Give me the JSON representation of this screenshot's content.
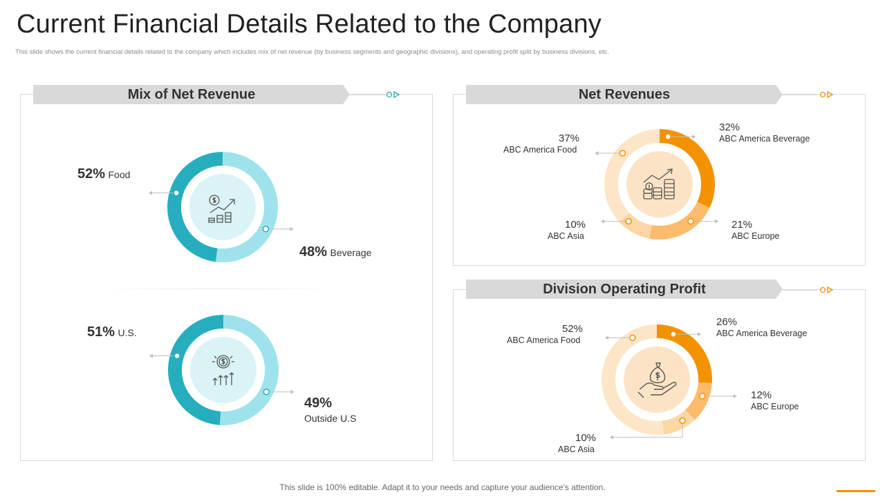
{
  "header": {
    "title": "Current Financial Details Related to the Company",
    "subtitle": "This slide shows the current financial details related to the company which includes mix of net revenue (by business segments and geographic divisions), and operating profit split by business divisions, etc."
  },
  "panels": {
    "mix": {
      "title": "Mix of Net Revenue"
    },
    "net": {
      "title": "Net Revenues"
    },
    "profit": {
      "title": "Division Operating Profit"
    }
  },
  "footer": {
    "text": "This slide is 100% editable. Adapt it to your needs and capture your audience's attention."
  },
  "colors": {
    "teal_dark": "#26aebf",
    "teal_light": "#9ee3ec",
    "teal_center": "#daf3f6",
    "orange_dark": "#f39200",
    "orange_mid": "#fbbc6b",
    "orange_light": "#fcd7a6",
    "orange_pale": "#fde6c8",
    "orange_center": "#fde3c5",
    "grey": "#d9d9d9"
  },
  "chart_data": [
    {
      "type": "pie",
      "series": [
        {
          "name": "Food",
          "label": "52%",
          "value": 52,
          "color": "#9ee3ec"
        },
        {
          "name": "Beverage",
          "label": "48%",
          "value": 48,
          "color": "#26aebf"
        }
      ]
    },
    {
      "type": "pie",
      "series": [
        {
          "name": "U.S.",
          "label": "51%",
          "value": 51,
          "color": "#9ee3ec"
        },
        {
          "name": "Outside U.S",
          "label": "49%",
          "value": 49,
          "color": "#26aebf"
        }
      ]
    },
    {
      "type": "pie",
      "series": [
        {
          "name": "ABC America Beverage",
          "label": "32%",
          "value": 32,
          "color": "#f39200"
        },
        {
          "name": "ABC Europe",
          "label": "21%",
          "value": 21,
          "color": "#fbbc6b"
        },
        {
          "name": "ABC Asia",
          "label": "10%",
          "value": 10,
          "color": "#fcd7a6"
        },
        {
          "name": "ABC America Food",
          "label": "37%",
          "value": 37,
          "color": "#fde6c8"
        }
      ]
    },
    {
      "type": "pie",
      "series": [
        {
          "name": "ABC America Beverage",
          "label": "26%",
          "value": 26,
          "color": "#f39200"
        },
        {
          "name": "ABC Europe",
          "label": "12%",
          "value": 12,
          "color": "#fbbc6b"
        },
        {
          "name": "ABC Asia",
          "label": "10%",
          "value": 10,
          "color": "#fcd7a6"
        },
        {
          "name": "ABC America Food",
          "label": "52%",
          "value": 52,
          "color": "#fde6c8"
        }
      ]
    }
  ]
}
